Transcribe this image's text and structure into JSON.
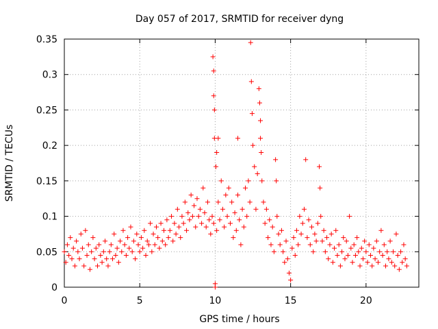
{
  "chart_data": {
    "type": "scatter",
    "title": "Day 057 of 2017, SRMTID for receiver dyng",
    "xlabel": "GPS time / hours",
    "ylabel": "SRMTID / TECUs",
    "xlim": [
      0,
      23.5
    ],
    "ylim": [
      0,
      0.35
    ],
    "x_ticks": [
      0,
      5,
      10,
      15,
      20
    ],
    "x_tick_labels": [
      "0",
      "5",
      "10",
      "15",
      "20"
    ],
    "y_ticks": [
      0,
      0.05,
      0.1,
      0.15,
      0.2,
      0.25,
      0.3,
      0.35
    ],
    "y_tick_labels": [
      "0",
      "0.05",
      "0.1",
      "0.15",
      "0.2",
      "0.25",
      "0.3",
      "0.35"
    ],
    "grid": true,
    "marker": "+",
    "color": "#ff0000",
    "series": [
      {
        "name": "SRMTID",
        "points": [
          [
            0.0,
            0.05
          ],
          [
            0.1,
            0.035
          ],
          [
            0.2,
            0.06
          ],
          [
            0.3,
            0.045
          ],
          [
            0.4,
            0.07
          ],
          [
            0.5,
            0.04
          ],
          [
            0.6,
            0.055
          ],
          [
            0.7,
            0.03
          ],
          [
            0.8,
            0.065
          ],
          [
            0.9,
            0.05
          ],
          [
            1.0,
            0.04
          ],
          [
            1.1,
            0.075
          ],
          [
            1.2,
            0.055
          ],
          [
            1.3,
            0.03
          ],
          [
            1.4,
            0.08
          ],
          [
            1.5,
            0.045
          ],
          [
            1.6,
            0.06
          ],
          [
            1.7,
            0.025
          ],
          [
            1.8,
            0.05
          ],
          [
            1.9,
            0.07
          ],
          [
            2.0,
            0.04
          ],
          [
            2.1,
            0.055
          ],
          [
            2.2,
            0.03
          ],
          [
            2.3,
            0.06
          ],
          [
            2.4,
            0.045
          ],
          [
            2.5,
            0.035
          ],
          [
            2.6,
            0.05
          ],
          [
            2.7,
            0.065
          ],
          [
            2.8,
            0.04
          ],
          [
            2.9,
            0.03
          ],
          [
            3.0,
            0.05
          ],
          [
            3.1,
            0.06
          ],
          [
            3.2,
            0.04
          ],
          [
            3.3,
            0.075
          ],
          [
            3.4,
            0.045
          ],
          [
            3.5,
            0.055
          ],
          [
            3.6,
            0.035
          ],
          [
            3.7,
            0.065
          ],
          [
            3.8,
            0.05
          ],
          [
            3.9,
            0.08
          ],
          [
            4.0,
            0.06
          ],
          [
            4.1,
            0.045
          ],
          [
            4.2,
            0.07
          ],
          [
            4.3,
            0.055
          ],
          [
            4.4,
            0.085
          ],
          [
            4.5,
            0.05
          ],
          [
            4.6,
            0.065
          ],
          [
            4.7,
            0.04
          ],
          [
            4.8,
            0.075
          ],
          [
            4.9,
            0.06
          ],
          [
            5.0,
            0.05
          ],
          [
            5.1,
            0.07
          ],
          [
            5.2,
            0.055
          ],
          [
            5.3,
            0.08
          ],
          [
            5.4,
            0.045
          ],
          [
            5.5,
            0.065
          ],
          [
            5.6,
            0.06
          ],
          [
            5.7,
            0.09
          ],
          [
            5.8,
            0.05
          ],
          [
            5.9,
            0.075
          ],
          [
            6.0,
            0.06
          ],
          [
            6.1,
            0.085
          ],
          [
            6.2,
            0.07
          ],
          [
            6.3,
            0.055
          ],
          [
            6.4,
            0.09
          ],
          [
            6.5,
            0.065
          ],
          [
            6.6,
            0.08
          ],
          [
            6.7,
            0.06
          ],
          [
            6.8,
            0.095
          ],
          [
            6.9,
            0.07
          ],
          [
            7.0,
            0.08
          ],
          [
            7.1,
            0.1
          ],
          [
            7.2,
            0.065
          ],
          [
            7.3,
            0.09
          ],
          [
            7.4,
            0.075
          ],
          [
            7.5,
            0.11
          ],
          [
            7.6,
            0.085
          ],
          [
            7.7,
            0.07
          ],
          [
            7.8,
            0.1
          ],
          [
            7.9,
            0.09
          ],
          [
            8.0,
            0.12
          ],
          [
            8.1,
            0.08
          ],
          [
            8.2,
            0.105
          ],
          [
            8.3,
            0.095
          ],
          [
            8.4,
            0.13
          ],
          [
            8.5,
            0.1
          ],
          [
            8.6,
            0.115
          ],
          [
            8.7,
            0.085
          ],
          [
            8.8,
            0.125
          ],
          [
            8.9,
            0.1
          ],
          [
            9.0,
            0.11
          ],
          [
            9.1,
            0.09
          ],
          [
            9.2,
            0.14
          ],
          [
            9.3,
            0.105
          ],
          [
            9.4,
            0.085
          ],
          [
            9.5,
            0.12
          ],
          [
            9.6,
            0.095
          ],
          [
            9.7,
            0.075
          ],
          [
            9.8,
            0.1
          ],
          [
            9.9,
            0.09
          ],
          [
            9.85,
            0.325
          ],
          [
            9.9,
            0.305
          ],
          [
            9.9,
            0.27
          ],
          [
            9.95,
            0.25
          ],
          [
            9.95,
            0.21
          ],
          [
            10.0,
            0.0
          ],
          [
            10.0,
            0.005
          ],
          [
            10.05,
            0.17
          ],
          [
            10.1,
            0.19
          ],
          [
            10.2,
            0.21
          ],
          [
            10.1,
            0.08
          ],
          [
            10.2,
            0.12
          ],
          [
            10.3,
            0.095
          ],
          [
            10.4,
            0.15
          ],
          [
            10.5,
            0.11
          ],
          [
            10.6,
            0.085
          ],
          [
            10.7,
            0.13
          ],
          [
            10.8,
            0.1
          ],
          [
            10.9,
            0.14
          ],
          [
            11.0,
            0.09
          ],
          [
            11.1,
            0.12
          ],
          [
            11.2,
            0.07
          ],
          [
            11.3,
            0.105
          ],
          [
            11.4,
            0.08
          ],
          [
            11.5,
            0.13
          ],
          [
            11.6,
            0.095
          ],
          [
            11.7,
            0.06
          ],
          [
            11.8,
            0.11
          ],
          [
            11.9,
            0.085
          ],
          [
            12.0,
            0.14
          ],
          [
            11.5,
            0.21
          ],
          [
            12.1,
            0.1
          ],
          [
            12.2,
            0.15
          ],
          [
            12.3,
            0.12
          ],
          [
            12.35,
            0.345
          ],
          [
            12.4,
            0.29
          ],
          [
            12.45,
            0.245
          ],
          [
            12.5,
            0.2
          ],
          [
            12.6,
            0.17
          ],
          [
            12.7,
            0.11
          ],
          [
            12.8,
            0.16
          ],
          [
            12.9,
            0.28
          ],
          [
            12.95,
            0.26
          ],
          [
            13.0,
            0.235
          ],
          [
            13.0,
            0.21
          ],
          [
            13.05,
            0.19
          ],
          [
            13.1,
            0.15
          ],
          [
            13.2,
            0.12
          ],
          [
            13.3,
            0.09
          ],
          [
            13.4,
            0.11
          ],
          [
            13.5,
            0.07
          ],
          [
            13.6,
            0.095
          ],
          [
            13.7,
            0.06
          ],
          [
            13.8,
            0.085
          ],
          [
            13.9,
            0.05
          ],
          [
            14.0,
            0.18
          ],
          [
            14.05,
            0.15
          ],
          [
            14.1,
            0.1
          ],
          [
            14.2,
            0.075
          ],
          [
            14.3,
            0.06
          ],
          [
            14.4,
            0.08
          ],
          [
            14.5,
            0.05
          ],
          [
            14.6,
            0.035
          ],
          [
            14.7,
            0.065
          ],
          [
            14.8,
            0.04
          ],
          [
            14.9,
            0.02
          ],
          [
            15.0,
            0.01
          ],
          [
            15.1,
            0.055
          ],
          [
            15.2,
            0.07
          ],
          [
            15.3,
            0.045
          ],
          [
            15.4,
            0.08
          ],
          [
            15.5,
            0.06
          ],
          [
            15.6,
            0.1
          ],
          [
            15.7,
            0.075
          ],
          [
            15.8,
            0.09
          ],
          [
            15.9,
            0.11
          ],
          [
            16.0,
            0.18
          ],
          [
            16.1,
            0.07
          ],
          [
            16.2,
            0.095
          ],
          [
            16.3,
            0.06
          ],
          [
            16.4,
            0.085
          ],
          [
            16.5,
            0.05
          ],
          [
            16.6,
            0.075
          ],
          [
            16.7,
            0.065
          ],
          [
            16.8,
            0.09
          ],
          [
            16.9,
            0.17
          ],
          [
            16.95,
            0.14
          ],
          [
            17.0,
            0.1
          ],
          [
            17.1,
            0.065
          ],
          [
            17.2,
            0.08
          ],
          [
            17.3,
            0.05
          ],
          [
            17.4,
            0.07
          ],
          [
            17.5,
            0.04
          ],
          [
            17.6,
            0.06
          ],
          [
            17.7,
            0.075
          ],
          [
            17.8,
            0.035
          ],
          [
            17.9,
            0.055
          ],
          [
            18.0,
            0.08
          ],
          [
            18.1,
            0.045
          ],
          [
            18.2,
            0.06
          ],
          [
            18.3,
            0.03
          ],
          [
            18.4,
            0.05
          ],
          [
            18.5,
            0.07
          ],
          [
            18.6,
            0.04
          ],
          [
            18.7,
            0.065
          ],
          [
            18.8,
            0.045
          ],
          [
            18.9,
            0.1
          ],
          [
            19.0,
            0.055
          ],
          [
            19.1,
            0.035
          ],
          [
            19.2,
            0.06
          ],
          [
            19.3,
            0.045
          ],
          [
            19.4,
            0.07
          ],
          [
            19.5,
            0.05
          ],
          [
            19.6,
            0.03
          ],
          [
            19.7,
            0.055
          ],
          [
            19.8,
            0.04
          ],
          [
            19.9,
            0.065
          ],
          [
            20.0,
            0.05
          ],
          [
            20.1,
            0.035
          ],
          [
            20.2,
            0.06
          ],
          [
            20.3,
            0.045
          ],
          [
            20.4,
            0.03
          ],
          [
            20.5,
            0.055
          ],
          [
            20.6,
            0.04
          ],
          [
            20.7,
            0.065
          ],
          [
            20.8,
            0.035
          ],
          [
            20.9,
            0.05
          ],
          [
            21.0,
            0.08
          ],
          [
            21.1,
            0.045
          ],
          [
            21.2,
            0.06
          ],
          [
            21.3,
            0.03
          ],
          [
            21.4,
            0.05
          ],
          [
            21.5,
            0.04
          ],
          [
            21.6,
            0.065
          ],
          [
            21.7,
            0.035
          ],
          [
            21.8,
            0.05
          ],
          [
            21.9,
            0.03
          ],
          [
            22.0,
            0.075
          ],
          [
            22.1,
            0.045
          ],
          [
            22.2,
            0.025
          ],
          [
            22.3,
            0.05
          ],
          [
            22.4,
            0.035
          ],
          [
            22.5,
            0.06
          ],
          [
            22.6,
            0.04
          ],
          [
            22.7,
            0.03
          ]
        ]
      }
    ]
  }
}
